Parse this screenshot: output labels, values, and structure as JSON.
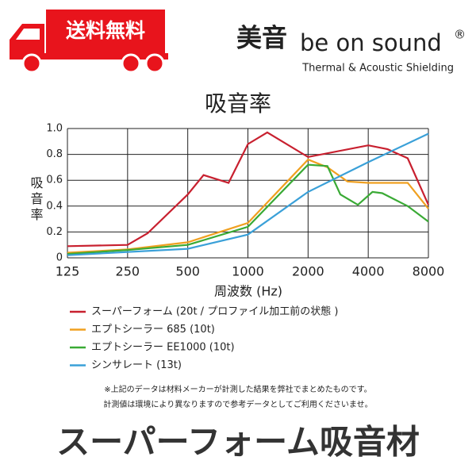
{
  "header": {
    "badge": "送料無料",
    "logo_kanji": "美音",
    "logo_text": "be on sound",
    "registered": "®",
    "tagline": "Thermal & Acoustic Shielding"
  },
  "chart_data": {
    "type": "line",
    "title": "吸音率",
    "y_label": "吸音率",
    "x_label": "周波数 (Hz)",
    "xscale": "log",
    "xlim": [
      125,
      8000
    ],
    "xticks": [
      125,
      250,
      500,
      1000,
      2000,
      4000,
      8000
    ],
    "ylim": [
      0,
      1
    ],
    "yticks": [
      0,
      {
        "value": 0.2,
        "label": "0.2"
      },
      {
        "value": 0.4,
        "label": "0.4"
      },
      {
        "value": 0.6,
        "label": "0.6"
      },
      {
        "value": 0.8,
        "label": "0.8"
      },
      {
        "value": 1,
        "label": "1.0"
      }
    ],
    "grid": true,
    "series": [
      {
        "name": "スーパーフォーム (20t / プロファイル加工前の状態 )",
        "color": "#c8202f",
        "x": [
          125,
          250,
          315,
          500,
          600,
          800,
          1000,
          1250,
          2000,
          4000,
          5000,
          6300,
          8000
        ],
        "values": [
          0.09,
          0.1,
          0.19,
          0.49,
          0.64,
          0.58,
          0.88,
          0.97,
          0.78,
          0.87,
          0.84,
          0.77,
          0.41
        ]
      },
      {
        "name": "エプトシーラー 685 (10t)",
        "color": "#f0a020",
        "x": [
          125,
          250,
          500,
          1000,
          2000,
          2500,
          3150,
          4000,
          6300,
          8000
        ],
        "values": [
          0.04,
          0.065,
          0.12,
          0.27,
          0.76,
          0.7,
          0.59,
          0.58,
          0.58,
          0.38
        ]
      },
      {
        "name": "エプトシーラー EE1000 (10t)",
        "color": "#3aaa35",
        "x": [
          125,
          250,
          500,
          1000,
          2000,
          2500,
          2900,
          3550,
          4200,
          4700,
          6300,
          8000
        ],
        "values": [
          0.03,
          0.06,
          0.1,
          0.24,
          0.72,
          0.71,
          0.49,
          0.41,
          0.51,
          0.5,
          0.4,
          0.28
        ]
      },
      {
        "name": "シンサレート (13t)",
        "color": "#3aa0d8",
        "x": [
          125,
          500,
          1000,
          2000,
          4000,
          8000
        ],
        "values": [
          0.02,
          0.07,
          0.18,
          0.51,
          0.74,
          0.96
        ]
      }
    ]
  },
  "notes": [
    "※上記のデータは材料メーカーが計測した結果を弊社でまとめたものです。",
    "計測値は環境により異なりますので参考データとしてご利用くださいませ。"
  ],
  "footer_title": "スーパーフォーム吸音材"
}
